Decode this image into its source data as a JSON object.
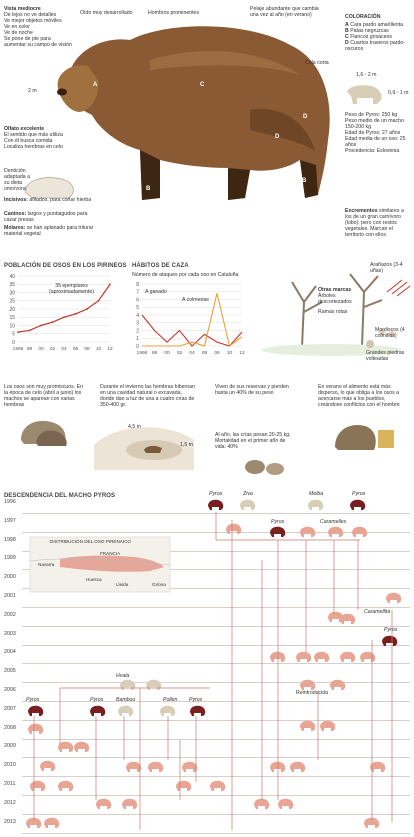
{
  "colors": {
    "accent": "#c0392b",
    "light_bear": "#e9a594",
    "dark_bear": "#7a1f1f",
    "tan": "#d8cdb6",
    "line": "#c97a6e",
    "brown": "#8a5a34"
  },
  "header": {
    "vista_title": "Vista mediocre",
    "vista_items": [
      "De lejos no ve detalles",
      "Ve mejor objetos móviles",
      "Ve en color",
      "Ve de noche",
      "Se pone de pie para aumentar su campo de visión"
    ],
    "oido": "Oído muy desarrollado",
    "hombros": "Hombros prominentes",
    "pelaje": "Pelaje abundante que cambia una vez al año (en verano)",
    "cola": "Cola corta",
    "height_2m": "2 m",
    "olfato_title": "Olfato excelente",
    "olfato_items": [
      "El sentido que más utiliza",
      "Con él busca comida",
      "Localiza hembras en celo"
    ],
    "denticion": "Dentición adaptada a su dieta omnívora:",
    "incisivos_b": "Incisivos:",
    "incisivos": "afilados, para cortar hierba",
    "caninos_b": "Caninos:",
    "caninos": "largos y puntiagudos para cazar presas",
    "molares_b": "Molares:",
    "molares": "se han aplanado para triturar material vegetal",
    "coloracion_title": "COLORACIÓN",
    "coloracion_items": [
      {
        "k": "A",
        "v": "Cara pardo amarillenta"
      },
      {
        "k": "B",
        "v": "Patas negruzcas"
      },
      {
        "k": "C",
        "v": "Flancos grisáceos"
      },
      {
        "k": "D",
        "v": "Cuartos traseros pardo-oscuros"
      }
    ],
    "dims": [
      "1,6 - 2 m",
      "0,9 - 1 m"
    ],
    "peso": "Peso de Pyros: 250 kg",
    "ficha": [
      "Peso medio de un macho 150-200 kg",
      "Edad de Pyros: 27 años",
      "Edad media de un oso: 25 años",
      "Procedencia: Eslovenia"
    ],
    "excrementos_b": "Excrementos",
    "excrementos": "similares a los de un gran carnívoro (lobo), pero con restos vegetales. Marcan el territorio con ellos",
    "letters": [
      "A",
      "B",
      "B",
      "C",
      "D",
      "D",
      "B"
    ]
  },
  "charts": {
    "poblacion_title": "POBLACIÓN DE OSOS EN LOS PIRINEOS",
    "poblacion_note": "35 ejemplares (aproximadamente)",
    "caza_title": "HÁBITOS DE CAZA",
    "caza_sub": "Número de ataques por cada oso en Cataluña",
    "caza_a": "A ganado",
    "caza_b": "A colmenas",
    "otras_marcas": "Otras marcas",
    "arboles": "Árboles descortezados",
    "ramas": "Ramas rotas",
    "aranazos": "Arañazos (3-4 uñas)",
    "mordiscos": "Mordiscos (4 colmillos)",
    "piedras": "Grandes piedras volteadas"
  },
  "chart_data": [
    {
      "type": "line",
      "title": "POBLACIÓN DE OSOS EN LOS PIRINEOS",
      "x": [
        "1996",
        "98",
        "00",
        "02",
        "04",
        "06",
        "08",
        "10",
        "12"
      ],
      "values": [
        6,
        7,
        10,
        12,
        15,
        17,
        20,
        25,
        35
      ],
      "ylim": [
        0,
        40
      ],
      "yticks": [
        0,
        5,
        10,
        15,
        20,
        25,
        30,
        35,
        40
      ]
    },
    {
      "type": "line",
      "title": "HÁBITOS DE CAZA",
      "x": [
        "1996",
        "98",
        "00",
        "02",
        "04",
        "06",
        "08",
        "10",
        "12"
      ],
      "ylim": [
        0,
        8
      ],
      "yticks": [
        0,
        1,
        2,
        3,
        4,
        5,
        6,
        7,
        8
      ],
      "series": [
        {
          "name": "A ganado",
          "values": [
            4,
            2,
            0.5,
            2,
            0,
            1.5,
            0.5,
            0,
            1.8
          ]
        },
        {
          "name": "A colmenas",
          "values": [
            0,
            0,
            0,
            0,
            0.5,
            0,
            6.8,
            0,
            1.2
          ]
        }
      ]
    }
  ],
  "life": {
    "t1": "Los osos son muy promiscuos. En la época de celo (abril a junio) los machos se aparean con varias hembras",
    "t2": "Durante el invierno las hembras hibernan en una cavidad natural o excavada, donde dan a luz de una a cuatro crías de 350-400 gr.",
    "den_a": "4,5 m",
    "den_b": "1,5 m",
    "t3": "Viven de sus reservas y pierden hasta un 40% de su peso",
    "t4": "Al año, las crías pesan 20-25 kg. Mortalidad en el primer año de vida: 40%",
    "t5": "En verano el alimento está más disperso, lo que obliga a los osos a acercarse más a los pueblos, creándose conflictos con el hombre"
  },
  "tree": {
    "title": "DESCENDENCIA DEL MACHO PYROS",
    "years": [
      "1996",
      "1997",
      "1998",
      "1999",
      "2000",
      "2001",
      "2002",
      "2003",
      "2004",
      "2005",
      "2006",
      "2007",
      "2008",
      "2009",
      "2010",
      "2011",
      "2012",
      "2013"
    ],
    "map_title": "DISTRIBUCIÓN DEL OSO PIRENAICO",
    "map_labels": [
      "FRANCIA",
      "Navarra",
      "Huesca",
      "Lleida",
      "Girona"
    ],
    "names": [
      "Pyros",
      "Ziva",
      "Melba",
      "Pyros",
      "Pyros",
      "Caramelles",
      "Caramellita",
      "Pyros",
      "Reintroducida",
      "Hvala",
      "Pyros",
      "Bambou",
      "Pollen",
      "Pyros",
      "Pyros"
    ]
  }
}
